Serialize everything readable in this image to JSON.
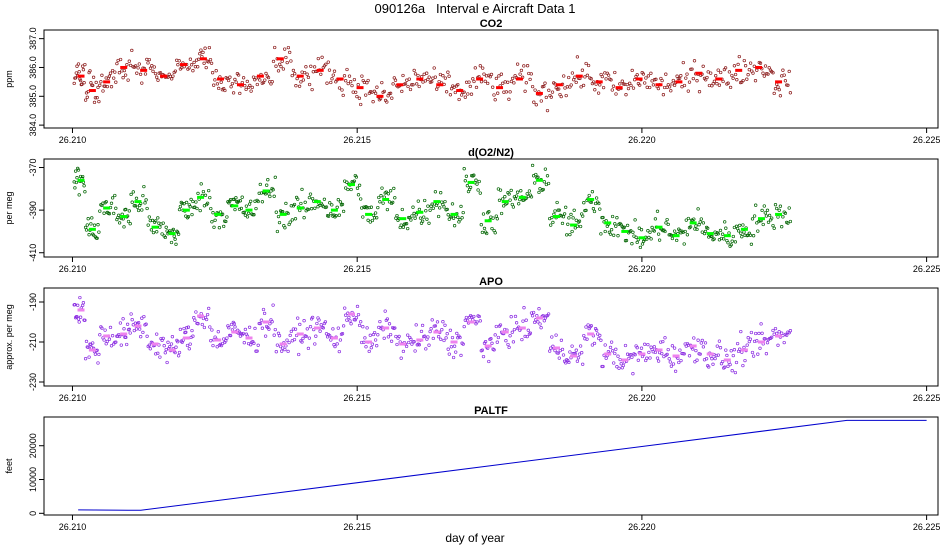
{
  "figure": {
    "title": "090126a   Interval e Aircraft Data 1",
    "xlabel": "day of year"
  },
  "chart_data": [
    {
      "type": "scatter",
      "title": "CO2",
      "ylabel": "ppm",
      "xlim": [
        26.2095,
        26.2252
      ],
      "ylim": [
        383.9,
        387.3
      ],
      "x_ticks": [
        "26.210",
        "26.215",
        "26.220",
        "26.225"
      ],
      "y_ticks": [
        "384.0",
        "385.0",
        "386.0",
        "387.0"
      ],
      "colors": {
        "points": "#8b1a1a",
        "means": "#ff0000"
      },
      "means": [
        {
          "x": 26.21015,
          "y": 385.7
        },
        {
          "x": 26.21035,
          "y": 385.2
        },
        {
          "x": 26.2106,
          "y": 385.5
        },
        {
          "x": 26.2109,
          "y": 386.0
        },
        {
          "x": 26.21125,
          "y": 385.9
        },
        {
          "x": 26.2116,
          "y": 385.7
        },
        {
          "x": 26.21195,
          "y": 386.1
        },
        {
          "x": 26.2123,
          "y": 386.3
        },
        {
          "x": 26.2126,
          "y": 385.6
        },
        {
          "x": 26.21295,
          "y": 385.4
        },
        {
          "x": 26.2133,
          "y": 385.7
        },
        {
          "x": 26.21365,
          "y": 386.3
        },
        {
          "x": 26.214,
          "y": 385.7
        },
        {
          "x": 26.21435,
          "y": 385.9
        },
        {
          "x": 26.2147,
          "y": 385.6
        },
        {
          "x": 26.21505,
          "y": 385.3
        },
        {
          "x": 26.2154,
          "y": 385.0
        },
        {
          "x": 26.21575,
          "y": 385.4
        },
        {
          "x": 26.2161,
          "y": 385.6
        },
        {
          "x": 26.21645,
          "y": 385.4
        },
        {
          "x": 26.2168,
          "y": 385.2
        },
        {
          "x": 26.21715,
          "y": 385.6
        },
        {
          "x": 26.2175,
          "y": 385.3
        },
        {
          "x": 26.21785,
          "y": 385.6
        },
        {
          "x": 26.2182,
          "y": 385.1
        },
        {
          "x": 26.21855,
          "y": 385.4
        },
        {
          "x": 26.2189,
          "y": 385.7
        },
        {
          "x": 26.21925,
          "y": 385.5
        },
        {
          "x": 26.2196,
          "y": 385.3
        },
        {
          "x": 26.21995,
          "y": 385.6
        },
        {
          "x": 26.2203,
          "y": 385.4
        },
        {
          "x": 26.22065,
          "y": 385.5
        },
        {
          "x": 26.221,
          "y": 385.8
        },
        {
          "x": 26.22135,
          "y": 385.6
        },
        {
          "x": 26.2217,
          "y": 385.9
        },
        {
          "x": 26.22205,
          "y": 386.0
        },
        {
          "x": 26.2224,
          "y": 385.5
        }
      ]
    },
    {
      "type": "scatter",
      "title": "d(O2/N2)",
      "ylabel": "per meg",
      "xlim": [
        26.2095,
        26.2252
      ],
      "ylim": [
        -412,
        -366
      ],
      "x_ticks": [
        "26.210",
        "26.215",
        "26.220",
        "26.225"
      ],
      "y_ticks": [
        "-410",
        "-390",
        "-370"
      ],
      "colors": {
        "points": "#006400",
        "means": "#00ff00"
      },
      "means": [
        {
          "x": 26.21015,
          "y": -376
        },
        {
          "x": 26.21035,
          "y": -399
        },
        {
          "x": 26.2106,
          "y": -389
        },
        {
          "x": 26.2109,
          "y": -393
        },
        {
          "x": 26.21115,
          "y": -386
        },
        {
          "x": 26.21145,
          "y": -398
        },
        {
          "x": 26.21175,
          "y": -401
        },
        {
          "x": 26.212,
          "y": -390
        },
        {
          "x": 26.21225,
          "y": -384
        },
        {
          "x": 26.21255,
          "y": -392
        },
        {
          "x": 26.21285,
          "y": -388
        },
        {
          "x": 26.2131,
          "y": -390
        },
        {
          "x": 26.2134,
          "y": -381
        },
        {
          "x": 26.2137,
          "y": -392
        },
        {
          "x": 26.214,
          "y": -389
        },
        {
          "x": 26.2143,
          "y": -386
        },
        {
          "x": 26.2146,
          "y": -390
        },
        {
          "x": 26.2149,
          "y": -378
        },
        {
          "x": 26.2152,
          "y": -392
        },
        {
          "x": 26.2155,
          "y": -385
        },
        {
          "x": 26.2158,
          "y": -394
        },
        {
          "x": 26.2161,
          "y": -391
        },
        {
          "x": 26.2164,
          "y": -386
        },
        {
          "x": 26.2167,
          "y": -392
        },
        {
          "x": 26.217,
          "y": -377
        },
        {
          "x": 26.2173,
          "y": -395
        },
        {
          "x": 26.2176,
          "y": -386
        },
        {
          "x": 26.2179,
          "y": -384
        },
        {
          "x": 26.2182,
          "y": -376
        },
        {
          "x": 26.2185,
          "y": -393
        },
        {
          "x": 26.2188,
          "y": -397
        },
        {
          "x": 26.2191,
          "y": -385
        },
        {
          "x": 26.2194,
          "y": -396
        },
        {
          "x": 26.2197,
          "y": -400
        },
        {
          "x": 26.22,
          "y": -403
        },
        {
          "x": 26.2203,
          "y": -398
        },
        {
          "x": 26.2206,
          "y": -402
        },
        {
          "x": 26.2209,
          "y": -396
        },
        {
          "x": 26.2212,
          "y": -401
        },
        {
          "x": 26.2215,
          "y": -402
        },
        {
          "x": 26.2218,
          "y": -399
        },
        {
          "x": 26.2221,
          "y": -394
        },
        {
          "x": 26.2224,
          "y": -392
        }
      ]
    },
    {
      "type": "scatter",
      "title": "APO",
      "ylabel": "approx. per meg",
      "xlim": [
        26.2095,
        26.2252
      ],
      "ylim": [
        -232,
        -183
      ],
      "x_ticks": [
        "26.210",
        "26.215",
        "26.220",
        "26.225"
      ],
      "y_ticks": [
        "-230",
        "-210",
        "-190"
      ],
      "colors": {
        "points": "#8a2be2",
        "means": "#ee82ee"
      },
      "means": [
        {
          "x": 26.21015,
          "y": -194
        },
        {
          "x": 26.21035,
          "y": -214
        },
        {
          "x": 26.2106,
          "y": -207
        },
        {
          "x": 26.2109,
          "y": -206
        },
        {
          "x": 26.21115,
          "y": -202
        },
        {
          "x": 26.21145,
          "y": -211
        },
        {
          "x": 26.21175,
          "y": -214
        },
        {
          "x": 26.212,
          "y": -208
        },
        {
          "x": 26.21225,
          "y": -197
        },
        {
          "x": 26.21255,
          "y": -209
        },
        {
          "x": 26.21285,
          "y": -205
        },
        {
          "x": 26.2131,
          "y": -208
        },
        {
          "x": 26.2134,
          "y": -200
        },
        {
          "x": 26.2137,
          "y": -211
        },
        {
          "x": 26.214,
          "y": -206
        },
        {
          "x": 26.2143,
          "y": -203
        },
        {
          "x": 26.2146,
          "y": -208
        },
        {
          "x": 26.2149,
          "y": -196
        },
        {
          "x": 26.2152,
          "y": -210
        },
        {
          "x": 26.2155,
          "y": -203
        },
        {
          "x": 26.2158,
          "y": -211
        },
        {
          "x": 26.2161,
          "y": -209
        },
        {
          "x": 26.2164,
          "y": -205
        },
        {
          "x": 26.2167,
          "y": -210
        },
        {
          "x": 26.217,
          "y": -200
        },
        {
          "x": 26.2173,
          "y": -212
        },
        {
          "x": 26.2176,
          "y": -205
        },
        {
          "x": 26.2179,
          "y": -203
        },
        {
          "x": 26.2182,
          "y": -198
        },
        {
          "x": 26.2185,
          "y": -213
        },
        {
          "x": 26.2188,
          "y": -217
        },
        {
          "x": 26.2191,
          "y": -206
        },
        {
          "x": 26.2194,
          "y": -216
        },
        {
          "x": 26.2197,
          "y": -219
        },
        {
          "x": 26.22,
          "y": -216
        },
        {
          "x": 26.2203,
          "y": -214
        },
        {
          "x": 26.2206,
          "y": -217
        },
        {
          "x": 26.2209,
          "y": -212
        },
        {
          "x": 26.2212,
          "y": -216
        },
        {
          "x": 26.2215,
          "y": -219
        },
        {
          "x": 26.2218,
          "y": -214
        },
        {
          "x": 26.2221,
          "y": -210
        },
        {
          "x": 26.2224,
          "y": -207
        }
      ]
    },
    {
      "type": "line",
      "title": "PALTF",
      "ylabel": "feet",
      "xlim": [
        26.2095,
        26.2252
      ],
      "ylim": [
        -500,
        28500
      ],
      "x_ticks": [
        "26.210",
        "26.215",
        "26.220",
        "26.225"
      ],
      "y_ticks": [
        "0",
        "10000",
        "20000"
      ],
      "colors": {
        "line": "#0000cd"
      },
      "x": [
        26.2101,
        26.2112,
        26.2236,
        26.225
      ],
      "y": [
        1000,
        900,
        27500,
        27500
      ]
    }
  ]
}
